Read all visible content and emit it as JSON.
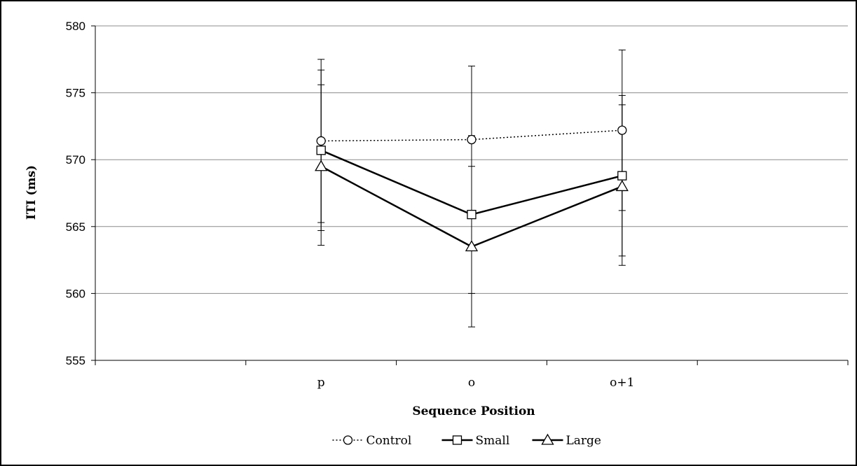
{
  "chart_data": {
    "type": "line",
    "title": "",
    "xlabel": "Sequence Position",
    "ylabel": "ITI (ms)",
    "ylim": [
      555,
      580
    ],
    "yticks": [
      555,
      560,
      565,
      570,
      575,
      580
    ],
    "grid": true,
    "legend_position": "bottom",
    "x_slots": 5,
    "categories": [
      "p",
      "o",
      "o+1"
    ],
    "category_slots": [
      1,
      2,
      3
    ],
    "series": [
      {
        "name": "Control",
        "marker": "circle",
        "line_style": "dotted",
        "values": [
          571.4,
          571.5,
          572.2
        ],
        "error_low": [
          565.3,
          566.0,
          566.2
        ],
        "error_high": [
          577.5,
          577.0,
          578.2
        ]
      },
      {
        "name": "Small",
        "marker": "square",
        "line_style": "solid",
        "values": [
          570.7,
          565.9,
          568.8
        ],
        "error_low": [
          564.7,
          560.0,
          562.8
        ],
        "error_high": [
          576.7,
          571.8,
          574.8
        ]
      },
      {
        "name": "Large",
        "marker": "triangle",
        "line_style": "solid",
        "values": [
          569.5,
          563.5,
          568.0
        ],
        "error_low": [
          563.6,
          557.5,
          562.1
        ],
        "error_high": [
          575.6,
          569.5,
          574.1
        ]
      }
    ]
  }
}
